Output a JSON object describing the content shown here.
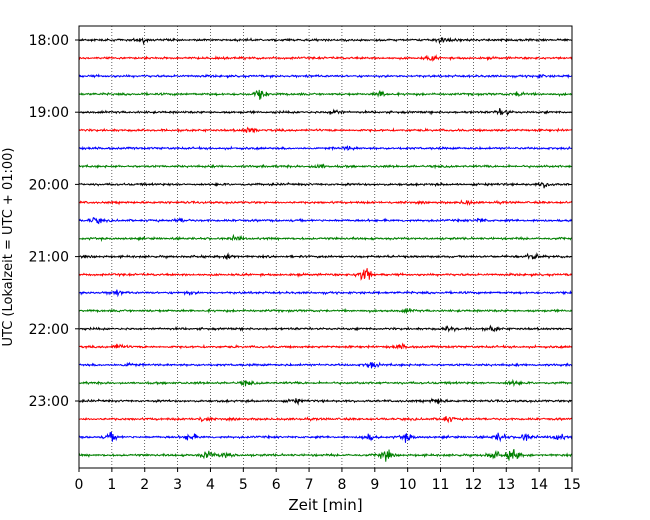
{
  "chart_data": {
    "type": "line",
    "title": "",
    "xlabel": "Zeit  [min]",
    "ylabel": "UTC (Lokalzeit = UTC + 01:00)",
    "xlim": [
      0,
      15
    ],
    "x_ticks": [
      "0",
      "1",
      "2",
      "3",
      "4",
      "5",
      "6",
      "7",
      "8",
      "9",
      "10",
      "11",
      "12",
      "13",
      "14",
      "15"
    ],
    "y_tick_labels": [
      "18:00",
      "19:00",
      "20:00",
      "21:00",
      "22:00",
      "23:00"
    ],
    "trace_interval_minutes": 15,
    "traces_per_hour": 4,
    "grid": "vertical dotted at each minute",
    "trace_colors": [
      "#000000",
      "#ff0000",
      "#0000ff",
      "#008000"
    ],
    "series": [
      {
        "start": "18:00",
        "color": "#000000",
        "events": [
          [
            1.9,
            0.8
          ],
          [
            11.1,
            1.0
          ]
        ]
      },
      {
        "start": "18:15",
        "color": "#ff0000",
        "events": [
          [
            10.7,
            0.6
          ]
        ]
      },
      {
        "start": "18:30",
        "color": "#0000ff",
        "events": [
          [
            14.0,
            0.4
          ]
        ]
      },
      {
        "start": "18:45",
        "color": "#008000",
        "events": [
          [
            5.5,
            1.3
          ],
          [
            9.2,
            0.9
          ],
          [
            13.4,
            0.8
          ]
        ]
      },
      {
        "start": "19:00",
        "color": "#000000",
        "events": [
          [
            7.8,
            0.8
          ],
          [
            12.9,
            1.1
          ]
        ]
      },
      {
        "start": "19:15",
        "color": "#ff0000",
        "events": [
          [
            5.2,
            0.9
          ]
        ]
      },
      {
        "start": "19:30",
        "color": "#0000ff",
        "events": [
          [
            8.2,
            0.5
          ]
        ]
      },
      {
        "start": "19:45",
        "color": "#008000",
        "events": [
          [
            7.3,
            0.7
          ]
        ]
      },
      {
        "start": "20:00",
        "color": "#000000",
        "events": [
          [
            14.2,
            0.9
          ]
        ]
      },
      {
        "start": "20:15",
        "color": "#ff0000",
        "events": [
          [
            11.8,
            0.6
          ]
        ]
      },
      {
        "start": "20:30",
        "color": "#0000ff",
        "events": [
          [
            0.5,
            0.8
          ],
          [
            3.1,
            0.5
          ],
          [
            12.2,
            0.6
          ]
        ]
      },
      {
        "start": "20:45",
        "color": "#008000",
        "events": [
          [
            4.8,
            0.6
          ]
        ]
      },
      {
        "start": "21:00",
        "color": "#000000",
        "events": [
          [
            4.6,
            0.7
          ],
          [
            13.8,
            1.0
          ]
        ]
      },
      {
        "start": "21:15",
        "color": "#ff0000",
        "events": [
          [
            8.7,
            3.0
          ]
        ]
      },
      {
        "start": "21:30",
        "color": "#0000ff",
        "events": [
          [
            1.1,
            0.7
          ],
          [
            3.3,
            0.5
          ]
        ]
      },
      {
        "start": "21:45",
        "color": "#008000",
        "events": [
          [
            10.0,
            0.4
          ]
        ]
      },
      {
        "start": "22:00",
        "color": "#000000",
        "events": [
          [
            11.3,
            0.8
          ],
          [
            12.6,
            0.7
          ]
        ]
      },
      {
        "start": "22:15",
        "color": "#ff0000",
        "events": [
          [
            1.2,
            0.9
          ],
          [
            9.8,
            0.6
          ]
        ]
      },
      {
        "start": "22:30",
        "color": "#0000ff",
        "events": [
          [
            8.9,
            1.0
          ],
          [
            1.5,
            0.5
          ]
        ]
      },
      {
        "start": "22:45",
        "color": "#008000",
        "events": [
          [
            5.1,
            0.6
          ],
          [
            13.2,
            0.7
          ]
        ]
      },
      {
        "start": "23:00",
        "color": "#000000",
        "events": [
          [
            6.6,
            0.6
          ],
          [
            10.9,
            0.9
          ]
        ]
      },
      {
        "start": "23:15",
        "color": "#ff0000",
        "events": [
          [
            3.8,
            0.6
          ],
          [
            11.2,
            0.9
          ]
        ]
      },
      {
        "start": "23:30",
        "color": "#0000ff",
        "events": [
          [
            1.0,
            1.1
          ],
          [
            3.4,
            1.0
          ],
          [
            8.8,
            1.0
          ],
          [
            10.0,
            1.1
          ],
          [
            12.8,
            1.2
          ],
          [
            13.6,
            1.1
          ],
          [
            14.6,
            1.0
          ]
        ]
      },
      {
        "start": "23:45",
        "color": "#008000",
        "events": [
          [
            3.9,
            1.3
          ],
          [
            4.5,
            1.0
          ],
          [
            9.3,
            1.6
          ],
          [
            12.6,
            1.2
          ],
          [
            13.2,
            2.0
          ]
        ]
      }
    ]
  }
}
